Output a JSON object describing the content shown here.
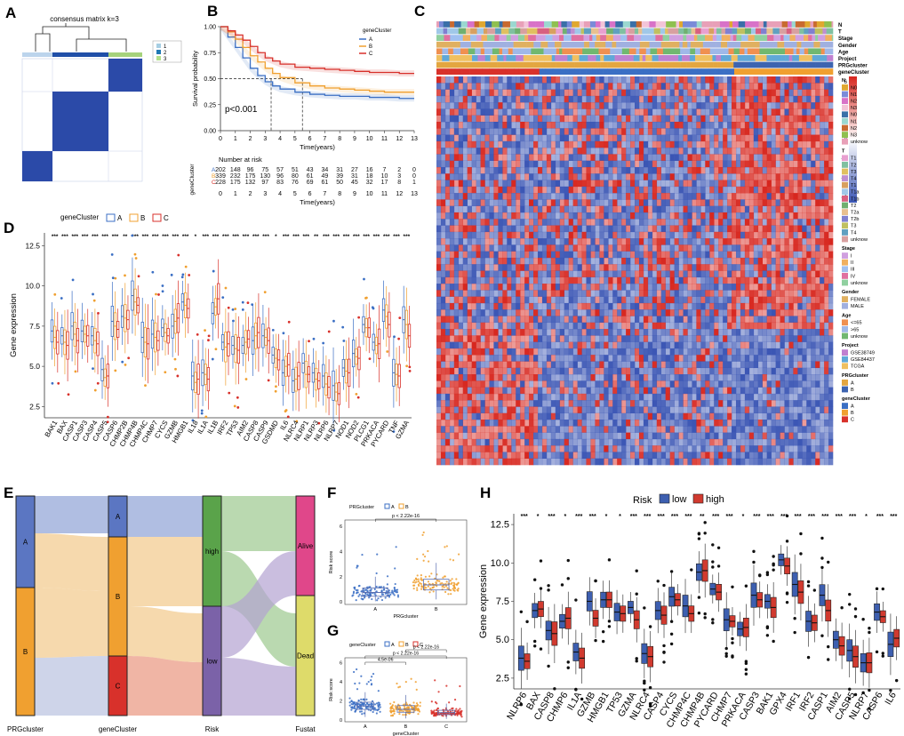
{
  "panel_letters": [
    "A",
    "B",
    "C",
    "D",
    "E",
    "F",
    "G",
    "H"
  ],
  "panelA": {
    "title": "consensus matrix k=3",
    "legend": [
      "1",
      "2",
      "3"
    ],
    "legend_colors": [
      "#a6cee3",
      "#1f78b4",
      "#b2df8a"
    ]
  },
  "colors": {
    "A": "#3b6fc4",
    "B": "#f0a030",
    "C": "#d8312b",
    "low": "#3d5fb0",
    "high": "#d13a2f",
    "heat_low": "#3a55b4",
    "heat_mid": "#ffffff",
    "heat_high": "#d7261e"
  },
  "chart_data": [
    {
      "panel": "B",
      "type": "line",
      "title": "",
      "xlabel": "Time(years)",
      "ylabel": "Survival probability",
      "xlim": [
        0,
        13
      ],
      "ylim": [
        0,
        1
      ],
      "x_ticks": [
        "0",
        "1",
        "2",
        "3",
        "4",
        "5",
        "6",
        "7",
        "8",
        "9",
        "10",
        "11",
        "12",
        "13"
      ],
      "y_ticks": [
        "0.00",
        "0.25",
        "0.50",
        "0.75",
        "1.00"
      ],
      "legend_title": "geneCluster",
      "pvalue": "p<0.001",
      "series": [
        {
          "name": "A",
          "x": [
            0,
            0.5,
            1,
            1.5,
            2,
            2.5,
            3,
            3.5,
            4,
            5,
            6,
            7,
            8,
            9,
            10,
            11,
            12,
            13
          ],
          "y": [
            1,
            0.9,
            0.8,
            0.7,
            0.6,
            0.53,
            0.47,
            0.43,
            0.4,
            0.37,
            0.35,
            0.34,
            0.33,
            0.33,
            0.32,
            0.32,
            0.31,
            0.31
          ]
        },
        {
          "name": "B",
          "x": [
            0,
            0.5,
            1,
            1.5,
            2,
            2.5,
            3,
            3.5,
            4,
            5,
            6,
            7,
            8,
            9,
            10,
            11,
            12,
            13
          ],
          "y": [
            1,
            0.95,
            0.88,
            0.8,
            0.72,
            0.66,
            0.6,
            0.55,
            0.51,
            0.46,
            0.43,
            0.41,
            0.4,
            0.39,
            0.38,
            0.37,
            0.37,
            0.37
          ]
        },
        {
          "name": "C",
          "x": [
            0,
            0.5,
            1,
            1.5,
            2,
            2.5,
            3,
            3.5,
            4,
            5,
            6,
            7,
            8,
            9,
            10,
            11,
            12,
            13
          ],
          "y": [
            1,
            0.96,
            0.92,
            0.87,
            0.81,
            0.75,
            0.7,
            0.67,
            0.64,
            0.61,
            0.6,
            0.59,
            0.58,
            0.57,
            0.56,
            0.56,
            0.55,
            0.55
          ]
        }
      ],
      "risk_table": {
        "title": "Number at risk",
        "strata_label": "geneCluster",
        "rows": [
          {
            "name": "A",
            "values": [
              "202",
              "148",
              "96",
              "75",
              "57",
              "51",
              "43",
              "34",
              "31",
              "27",
              "16",
              "7",
              "2",
              "0"
            ]
          },
          {
            "name": "B",
            "values": [
              "339",
              "232",
              "175",
              "130",
              "96",
              "80",
              "61",
              "49",
              "39",
              "31",
              "18",
              "10",
              "3",
              "0"
            ]
          },
          {
            "name": "C",
            "values": [
              "228",
              "175",
              "132",
              "97",
              "83",
              "76",
              "69",
              "61",
              "50",
              "45",
              "32",
              "17",
              "8",
              "1"
            ]
          }
        ]
      }
    },
    {
      "panel": "D",
      "type": "box",
      "ylabel": "Gene expression",
      "ylim": [
        1.8,
        13.3
      ],
      "y_ticks": [
        "2.5",
        "5.0",
        "7.5",
        "10.0",
        "12.5"
      ],
      "legend_title": "geneCluster",
      "groups": [
        "A",
        "B",
        "C"
      ],
      "categories": [
        "BAK1",
        "BAX",
        "CASP1",
        "CASP3",
        "CASP4",
        "CASP5",
        "CASP6",
        "CHMP2B",
        "CHMP4B",
        "CHMP4C",
        "CHMP7",
        "CYCS",
        "GZMB",
        "HMGB1",
        "IL18",
        "IL1A",
        "IL1B",
        "IRF2",
        "TP53",
        "AIM2",
        "CASP8",
        "CASP9",
        "GSDMD",
        "IL6",
        "NLRC4",
        "NLRP1",
        "NLRP3",
        "NLRP6",
        "NLRP7",
        "NOD1",
        "NOD2",
        "PLCG1",
        "PRKACA",
        "PYCARD",
        "TNF",
        "GZMA"
      ],
      "signif": [
        "***",
        "***",
        "***",
        "***",
        "***",
        "***",
        "***",
        "**",
        "***",
        "***",
        "***",
        "***",
        "***",
        "***",
        "*",
        "***",
        "***",
        "***",
        "***",
        "***",
        "***",
        "***",
        "*",
        "***",
        "***",
        "***",
        "**",
        "***",
        "***",
        "***",
        "***",
        "***",
        "***",
        "***",
        "***",
        "***"
      ],
      "medians": [
        [
          7.2,
          6.8,
          6.5
        ],
        [
          6.9,
          6.5,
          6.3
        ],
        [
          7.5,
          7.0,
          6.6
        ],
        [
          7.2,
          7.0,
          6.9
        ],
        [
          6.9,
          6.6,
          6.4
        ],
        [
          4.8,
          4.3,
          4.4
        ],
        [
          7.8,
          7.5,
          7.3
        ],
        [
          8.1,
          8.0,
          7.9
        ],
        [
          9.4,
          9.0,
          8.8
        ],
        [
          6.8,
          6.5,
          6.4
        ],
        [
          7.0,
          6.8,
          6.6
        ],
        [
          7.4,
          7.1,
          6.9
        ],
        [
          7.5,
          7.8,
          8.0
        ],
        [
          9.0,
          8.8,
          8.6
        ],
        [
          4.4,
          4.0,
          4.2
        ],
        [
          4.6,
          4.5,
          4.2
        ],
        [
          8.3,
          8.7,
          9.2
        ],
        [
          6.5,
          6.2,
          6.4
        ],
        [
          6.3,
          6.1,
          6.0
        ],
        [
          6.3,
          6.5,
          6.7
        ],
        [
          6.6,
          6.9,
          7.1
        ],
        [
          6.9,
          6.8,
          6.6
        ],
        [
          5.7,
          5.5,
          5.4
        ],
        [
          4.6,
          5.0,
          5.1
        ],
        [
          4.1,
          4.2,
          4.4
        ],
        [
          5.2,
          4.5,
          4.5
        ],
        [
          4.6,
          4.2,
          4.1
        ],
        [
          4.4,
          3.9,
          3.7
        ],
        [
          3.8,
          3.4,
          3.3
        ],
        [
          4.9,
          4.7,
          4.6
        ],
        [
          5.8,
          5.6,
          5.5
        ],
        [
          7.6,
          7.4,
          7.4
        ],
        [
          6.5,
          6.3,
          6.4
        ],
        [
          8.5,
          8.1,
          7.6
        ],
        [
          4.6,
          4.5,
          4.4
        ],
        [
          7.9,
          7.6,
          6.9
        ]
      ]
    },
    {
      "panel": "E",
      "type": "alluvial",
      "axes": [
        "PRGcluster",
        "geneCluster",
        "Risk",
        "Fustat"
      ],
      "strata": {
        "PRGcluster": [
          "A",
          "B"
        ],
        "geneCluster": [
          "A",
          "B",
          "C"
        ],
        "Risk": [
          "high",
          "low"
        ],
        "Fustat": [
          "Alive",
          "Dead"
        ]
      }
    },
    {
      "panel": "F",
      "type": "box",
      "legend_title": "PRGcluster",
      "groups": [
        "A",
        "B"
      ],
      "xlabel": "PRGcluster",
      "ylabel": "Risk score",
      "ylim": [
        -0.2,
        6.5
      ],
      "y_ticks": [
        "0",
        "2",
        "4",
        "6"
      ],
      "pvalue": "p < 2.22e-16",
      "stats": [
        {
          "q1": 0.45,
          "median": 0.75,
          "q3": 1.1,
          "lo": 0.05,
          "hi": 2.0
        },
        {
          "q1": 0.95,
          "median": 1.35,
          "q3": 1.8,
          "lo": 0.2,
          "hi": 3.1
        }
      ]
    },
    {
      "panel": "G",
      "type": "box",
      "legend_title": "geneCluster",
      "groups": [
        "A",
        "B",
        "C"
      ],
      "xlabel": "geneCluster",
      "ylabel": "Risk score",
      "ylim": [
        -0.2,
        6.5
      ],
      "y_ticks": [
        "0",
        "2",
        "4",
        "6"
      ],
      "pvalues": [
        "4.5e-06",
        "p < 2.22e-16",
        "p < 2.22e-16"
      ],
      "stats": [
        {
          "q1": 1.1,
          "median": 1.45,
          "q3": 1.85,
          "lo": 0.3,
          "hi": 2.9
        },
        {
          "q1": 0.8,
          "median": 1.1,
          "q3": 1.5,
          "lo": 0.15,
          "hi": 2.6
        },
        {
          "q1": 0.55,
          "median": 0.75,
          "q3": 1.0,
          "lo": 0.1,
          "hi": 1.7
        }
      ]
    },
    {
      "panel": "H",
      "type": "box",
      "ylabel": "Gene expression",
      "ylim": [
        1.8,
        13.2
      ],
      "y_ticks": [
        "2.5",
        "5.0",
        "7.5",
        "10.0",
        "12.5"
      ],
      "legend_title": "Risk",
      "groups": [
        "low",
        "high"
      ],
      "categories": [
        "NLRP6",
        "BAX",
        "CASP8",
        "CHMP6",
        "IL1A",
        "GZMB",
        "HMGB1",
        "TP53",
        "GZMA",
        "NLRC4",
        "CASP4",
        "CYCS",
        "CHMP4C",
        "CHMP4B",
        "PYCARD",
        "CHMP7",
        "PRKACA",
        "CASP3",
        "BAK1",
        "GPX4",
        "IRF1",
        "IRF2",
        "CASP1",
        "AIM2",
        "CASP5",
        "NLRP7",
        "CASP6",
        "IL6"
      ],
      "signif": [
        "***",
        "*",
        "***",
        "*",
        "***",
        "***",
        "*",
        "*",
        "***",
        "***",
        "***",
        "***",
        "***",
        "**",
        "***",
        "***",
        "*",
        "***",
        "***",
        "***",
        "***",
        "***",
        "***",
        "***",
        "***",
        "*",
        "***",
        "***"
      ],
      "medians": [
        [
          3.8,
          3.6
        ],
        [
          6.9,
          7.0
        ],
        [
          5.6,
          5.4
        ],
        [
          6.2,
          6.4
        ],
        [
          4.2,
          3.8
        ],
        [
          7.5,
          6.4
        ],
        [
          7.6,
          7.6
        ],
        [
          6.8,
          6.7
        ],
        [
          7.1,
          6.3
        ],
        [
          4.1,
          3.9
        ],
        [
          6.9,
          6.6
        ],
        [
          7.8,
          7.6
        ],
        [
          7.2,
          6.7
        ],
        [
          9.4,
          9.5
        ],
        [
          8.3,
          8.1
        ],
        [
          6.3,
          6.2
        ],
        [
          5.7,
          5.8
        ],
        [
          7.9,
          7.6
        ],
        [
          7.5,
          7.1
        ],
        [
          10.2,
          9.8
        ],
        [
          8.6,
          8.1
        ],
        [
          6.2,
          6.1
        ],
        [
          7.9,
          6.9
        ],
        [
          5.0,
          4.6
        ],
        [
          4.3,
          3.9
        ],
        [
          3.5,
          3.5
        ],
        [
          6.8,
          6.5
        ],
        [
          4.7,
          5.1
        ]
      ]
    }
  ],
  "panelC": {
    "annotation_rows": [
      "N",
      "T",
      "Stage",
      "Gender",
      "Age",
      "Project",
      "PRGcluster",
      "geneCluster"
    ],
    "scale_ticks": [
      "6",
      "4",
      "2",
      "0",
      "−2",
      "−4",
      "−6"
    ],
    "legend": [
      {
        "title": "N",
        "items": [
          "N0",
          "N1",
          "N2",
          "N3",
          "N0",
          "N1",
          "N2",
          "N3",
          "unknow"
        ],
        "colors": [
          "#e0a830",
          "#7a8bd8",
          "#d872c8",
          "#f3c4d8",
          "#3a6fa8",
          "#9bd8d0",
          "#c86a30",
          "#8fc050",
          "#e8a0b8"
        ]
      },
      {
        "title": "T",
        "items": [
          "T1",
          "T2",
          "T3",
          "T4",
          "T1",
          "T1a",
          "T1b",
          "T2",
          "T2a",
          "T2b",
          "T3",
          "T4",
          "unknow"
        ],
        "colors": [
          "#e8a0d0",
          "#80c0a0",
          "#e0c060",
          "#c08fd0",
          "#d8a060",
          "#a0c8e8",
          "#d86080",
          "#70b070",
          "#e8c090",
          "#8080d0",
          "#c0c060",
          "#60a0c0",
          "#d8a0a0"
        ]
      },
      {
        "title": "Stage",
        "items": [
          "I",
          "II",
          "III",
          "IV",
          "unknow"
        ],
        "colors": [
          "#d0a0e0",
          "#f0b060",
          "#a0c0f0",
          "#e070a0",
          "#90d0a0"
        ]
      },
      {
        "title": "Gender",
        "items": [
          "FEMALE",
          "MALE"
        ],
        "colors": [
          "#e0b060",
          "#a0b0e0"
        ]
      },
      {
        "title": "Age",
        "items": [
          "<=65",
          ">65",
          "unknow"
        ],
        "colors": [
          "#f09050",
          "#9fb8e8",
          "#70b870"
        ]
      },
      {
        "title": "Project",
        "items": [
          "GSE38749",
          "GSE84437",
          "TCGA"
        ],
        "colors": [
          "#c080d0",
          "#60a8d8",
          "#f0c060"
        ]
      },
      {
        "title": "PRGcluster",
        "items": [
          "A",
          "B"
        ],
        "colors": [
          "#e3a640",
          "#3d64b0"
        ]
      },
      {
        "title": "geneCluster",
        "items": [
          "A",
          "B",
          "C"
        ],
        "colors": [
          "#3b6fc4",
          "#f0a030",
          "#d8312b"
        ]
      }
    ]
  }
}
